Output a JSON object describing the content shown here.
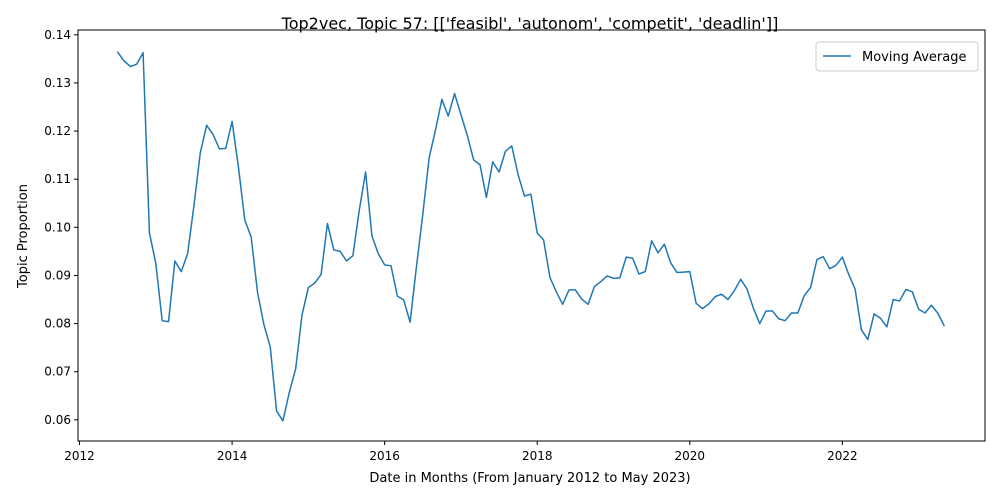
{
  "chart_data": {
    "type": "line",
    "title": "Top2vec, Topic 57: [['feasibl', 'autonom', 'competit', 'deadlin']]",
    "xlabel": "Date in Months (From January 2012 to May 2023)",
    "ylabel": "Topic Proportion",
    "xlim": [
      2011.98,
      2023.87
    ],
    "ylim": [
      0.0556,
      0.141
    ],
    "x_ticks": [
      2012,
      2014,
      2016,
      2018,
      2020,
      2022
    ],
    "y_ticks": [
      0.06,
      0.07,
      0.08,
      0.09,
      0.1,
      0.11,
      0.12,
      0.13,
      0.14
    ],
    "y_tick_labels": [
      "0.06",
      "0.07",
      "0.08",
      "0.09",
      "0.10",
      "0.11",
      "0.12",
      "0.13",
      "0.14"
    ],
    "grid": false,
    "legend_position": "top-right",
    "series": [
      {
        "name": "Moving Average",
        "color": "#1f77b4",
        "start": "2012-07",
        "step": "month",
        "values": [
          0.1364,
          0.1346,
          0.1334,
          0.1339,
          0.1363,
          0.0988,
          0.0925,
          0.0806,
          0.0804,
          0.093,
          0.0908,
          0.0945,
          0.1045,
          0.1155,
          0.1212,
          0.1193,
          0.1163,
          0.1164,
          0.122,
          0.1125,
          0.1015,
          0.098,
          0.0865,
          0.0798,
          0.0752,
          0.0618,
          0.0598,
          0.0657,
          0.0706,
          0.0818,
          0.0875,
          0.0884,
          0.0902,
          0.1008,
          0.0953,
          0.095,
          0.093,
          0.0941,
          0.1035,
          0.1115,
          0.0982,
          0.0945,
          0.0922,
          0.092,
          0.0857,
          0.0849,
          0.0803,
          0.0918,
          0.1027,
          0.1145,
          0.1202,
          0.1266,
          0.1231,
          0.1278,
          0.1234,
          0.1191,
          0.114,
          0.113,
          0.1062,
          0.1136,
          0.1115,
          0.1158,
          0.1169,
          0.1109,
          0.1065,
          0.1069,
          0.0988,
          0.0974,
          0.0896,
          0.0866,
          0.084,
          0.087,
          0.087,
          0.0851,
          0.084,
          0.0877,
          0.0887,
          0.0899,
          0.0894,
          0.0895,
          0.0938,
          0.0936,
          0.0903,
          0.0908,
          0.0972,
          0.0947,
          0.0965,
          0.0926,
          0.0906,
          0.0907,
          0.0908,
          0.0842,
          0.0831,
          0.0841,
          0.0856,
          0.0861,
          0.085,
          0.0868,
          0.0892,
          0.0872,
          0.0832,
          0.08,
          0.0826,
          0.0826,
          0.081,
          0.0806,
          0.0822,
          0.0822,
          0.0858,
          0.0875,
          0.0933,
          0.0939,
          0.0914,
          0.0921,
          0.0938,
          0.0902,
          0.0872,
          0.0787,
          0.0767,
          0.082,
          0.0811,
          0.0793,
          0.085,
          0.0847,
          0.0871,
          0.0866,
          0.083,
          0.0822,
          0.0838,
          0.0822,
          0.0796
        ]
      }
    ]
  }
}
